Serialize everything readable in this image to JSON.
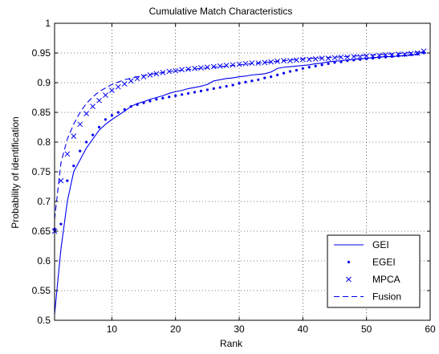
{
  "chart_data": {
    "type": "line",
    "title": "Cumulative Match Characteristics",
    "xlabel": "Rank",
    "ylabel": "Probability of identification",
    "xlim": [
      1,
      60
    ],
    "ylim": [
      0.5,
      1
    ],
    "xticks": [
      10,
      20,
      30,
      40,
      50,
      60
    ],
    "yticks": [
      0.5,
      0.55,
      0.6,
      0.65,
      0.7,
      0.75,
      0.8,
      0.85,
      0.9,
      0.95,
      1
    ],
    "ytick_labels": [
      "0.5",
      "0.55",
      "0.6",
      "0.65",
      "0.7",
      "0.75",
      "0.8",
      "0.85",
      "0.9",
      "0.95",
      "1"
    ],
    "grid": true,
    "legend_position": "bottom-right",
    "color": "#0000ee",
    "series": [
      {
        "name": "GEI",
        "style": "solid",
        "x": [
          1,
          2,
          3,
          4,
          5,
          6,
          7,
          8,
          9,
          10,
          11,
          12,
          13,
          14,
          15,
          16,
          17,
          18,
          19,
          20,
          21,
          22,
          23,
          24,
          25,
          26,
          27,
          28,
          29,
          30,
          31,
          32,
          33,
          34,
          35,
          36,
          37,
          38,
          39,
          40,
          41,
          42,
          43,
          44,
          45,
          46,
          47,
          48,
          49,
          50,
          51,
          52,
          53,
          54,
          55,
          56,
          57,
          58,
          59
        ],
        "values": [
          0.51,
          0.62,
          0.7,
          0.75,
          0.77,
          0.79,
          0.805,
          0.82,
          0.83,
          0.838,
          0.845,
          0.852,
          0.86,
          0.865,
          0.868,
          0.872,
          0.875,
          0.878,
          0.882,
          0.885,
          0.887,
          0.89,
          0.892,
          0.894,
          0.897,
          0.903,
          0.905,
          0.907,
          0.908,
          0.91,
          0.911,
          0.913,
          0.914,
          0.915,
          0.918,
          0.924,
          0.926,
          0.927,
          0.928,
          0.929,
          0.93,
          0.932,
          0.933,
          0.935,
          0.936,
          0.937,
          0.938,
          0.939,
          0.94,
          0.941,
          0.942,
          0.943,
          0.944,
          0.944,
          0.945,
          0.946,
          0.947,
          0.948,
          0.953
        ]
      },
      {
        "name": "EGEI",
        "style": "dots",
        "x": [
          1,
          2,
          3,
          4,
          5,
          6,
          7,
          8,
          9,
          10,
          11,
          12,
          13,
          14,
          15,
          16,
          17,
          18,
          19,
          20,
          21,
          22,
          23,
          24,
          25,
          26,
          27,
          28,
          29,
          30,
          31,
          32,
          33,
          34,
          35,
          36,
          37,
          38,
          39,
          40,
          41,
          42,
          43,
          44,
          45,
          46,
          47,
          48,
          49,
          50,
          51,
          52,
          53,
          54,
          55,
          56,
          57,
          58,
          59
        ],
        "values": [
          0.654,
          0.662,
          0.735,
          0.76,
          0.785,
          0.8,
          0.812,
          0.825,
          0.838,
          0.845,
          0.85,
          0.855,
          0.86,
          0.863,
          0.866,
          0.869,
          0.872,
          0.874,
          0.876,
          0.878,
          0.88,
          0.882,
          0.884,
          0.886,
          0.888,
          0.89,
          0.892,
          0.894,
          0.896,
          0.899,
          0.901,
          0.903,
          0.905,
          0.908,
          0.91,
          0.913,
          0.916,
          0.919,
          0.921,
          0.924,
          0.926,
          0.928,
          0.93,
          0.932,
          0.934,
          0.935,
          0.937,
          0.938,
          0.939,
          0.94,
          0.941,
          0.942,
          0.943,
          0.944,
          0.945,
          0.946,
          0.947,
          0.948,
          0.95
        ]
      },
      {
        "name": "MPCA",
        "style": "x-markers",
        "x": [
          1,
          2,
          3,
          4,
          5,
          6,
          7,
          8,
          9,
          10,
          11,
          12,
          13,
          14,
          15,
          16,
          17,
          18,
          19,
          20,
          21,
          22,
          23,
          24,
          25,
          26,
          27,
          28,
          29,
          30,
          31,
          32,
          33,
          34,
          35,
          36,
          37,
          38,
          39,
          40,
          41,
          42,
          43,
          44,
          45,
          46,
          47,
          48,
          49,
          50,
          51,
          52,
          53,
          54,
          55,
          56,
          57,
          58,
          59
        ],
        "values": [
          0.65,
          0.735,
          0.78,
          0.81,
          0.83,
          0.848,
          0.86,
          0.87,
          0.879,
          0.887,
          0.893,
          0.898,
          0.903,
          0.907,
          0.91,
          0.913,
          0.915,
          0.917,
          0.919,
          0.92,
          0.922,
          0.923,
          0.924,
          0.925,
          0.926,
          0.927,
          0.928,
          0.929,
          0.93,
          0.931,
          0.932,
          0.933,
          0.933,
          0.934,
          0.935,
          0.936,
          0.937,
          0.937,
          0.938,
          0.939,
          0.939,
          0.94,
          0.941,
          0.941,
          0.942,
          0.943,
          0.943,
          0.944,
          0.944,
          0.945,
          0.945,
          0.946,
          0.947,
          0.947,
          0.948,
          0.948,
          0.949,
          0.95,
          0.953
        ]
      },
      {
        "name": "Fusion",
        "style": "dashed",
        "x": [
          1,
          2,
          3,
          4,
          5,
          6,
          7,
          8,
          9,
          10,
          12,
          14,
          16,
          18,
          20,
          25,
          30,
          35,
          40,
          45,
          50,
          55,
          59
        ],
        "values": [
          0.67,
          0.765,
          0.805,
          0.83,
          0.85,
          0.865,
          0.876,
          0.885,
          0.891,
          0.897,
          0.905,
          0.91,
          0.914,
          0.917,
          0.92,
          0.925,
          0.93,
          0.935,
          0.94,
          0.943,
          0.946,
          0.949,
          0.952
        ]
      }
    ]
  }
}
